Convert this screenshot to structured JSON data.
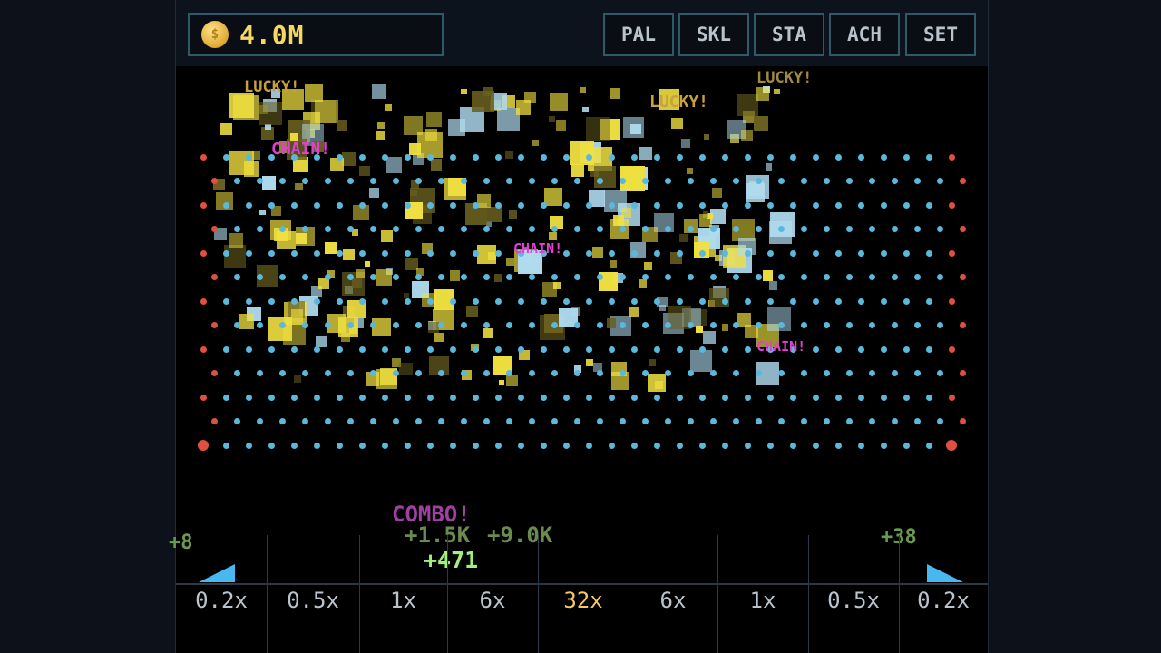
{
  "header": {
    "coin_icon": "coin-icon",
    "coin_symbol": "$",
    "coins": "4.0M"
  },
  "nav": [
    {
      "label": "PAL"
    },
    {
      "label": "SKL"
    },
    {
      "label": "STA"
    },
    {
      "label": "ACH"
    },
    {
      "label": "SET"
    }
  ],
  "floating_text": [
    {
      "text": "LUCKY!",
      "color": "#c8a040"
    },
    {
      "text": "LUCKY!",
      "color": "#c8a040"
    },
    {
      "text": "LUCKY!",
      "color": "#a08a40"
    },
    {
      "text": "CHAIN!",
      "color": "#e040d0"
    },
    {
      "text": "CHAIN!",
      "color": "#e040d0"
    },
    {
      "text": "CHAIN!",
      "color": "#e040d0"
    },
    {
      "text": "COMBO!",
      "color": "#a040a0"
    },
    {
      "text": "+1.5K",
      "color": "#6a8a50"
    },
    {
      "text": "+9.0K",
      "color": "#6a8a50"
    },
    {
      "text": "+471",
      "color": "#a0f080"
    },
    {
      "text": "+8",
      "color": "#6a9a50"
    },
    {
      "text": "+38",
      "color": "#6a9a50"
    }
  ],
  "bins": [
    {
      "label": "0.2x"
    },
    {
      "label": "0.5x"
    },
    {
      "label": "1x"
    },
    {
      "label": "6x"
    },
    {
      "label": "32x",
      "highlight": true
    },
    {
      "label": "6x"
    },
    {
      "label": "1x"
    },
    {
      "label": "0.5x"
    },
    {
      "label": "0.2x"
    }
  ],
  "colors": {
    "peg": "#5ab8dc",
    "edge_peg": "#e05040",
    "explosion": "#f0e040",
    "highlight_bin": "#f5c860",
    "bin_text": "#b9c3cc",
    "border": "#2e5a68"
  }
}
